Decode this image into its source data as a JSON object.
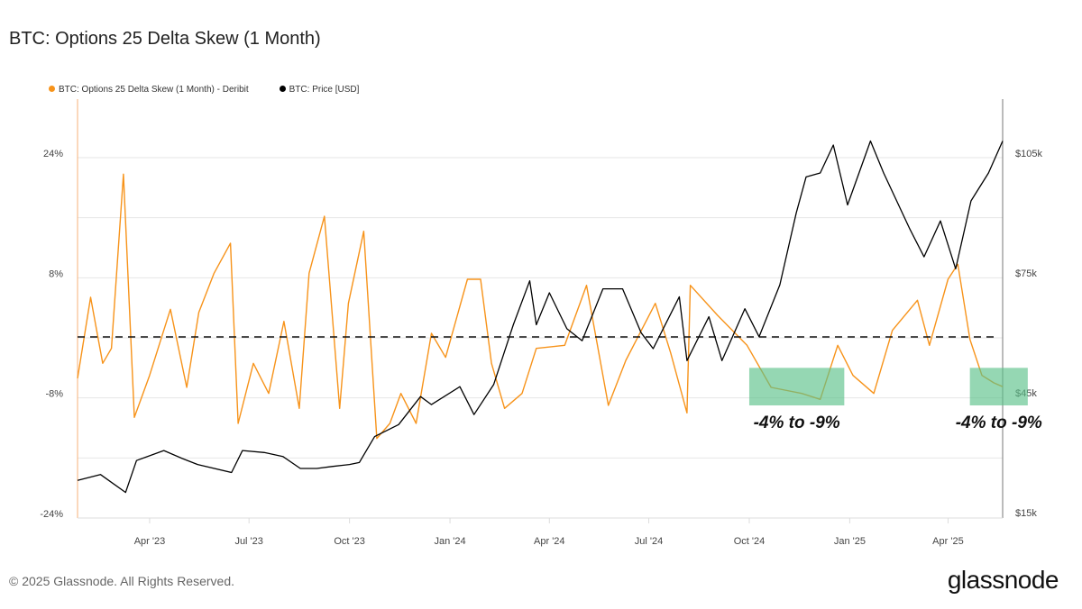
{
  "title": "BTC: Options 25 Delta Skew (1 Month)",
  "footer": "© 2025 Glassnode. All Rights Reserved.",
  "logo": "glassnode",
  "chart_data": {
    "type": "line",
    "title": "BTC: Options 25 Delta Skew (1 Month)",
    "grid": true,
    "legend_placement": "top-left",
    "x_range": [
      "2023-01-25",
      "2025-05-21"
    ],
    "x_ticks": [
      {
        "date": "2023-04-01",
        "label": "Apr '23"
      },
      {
        "date": "2023-07-01",
        "label": "Jul '23"
      },
      {
        "date": "2023-10-01",
        "label": "Oct '23"
      },
      {
        "date": "2024-01-01",
        "label": "Jan '24"
      },
      {
        "date": "2024-04-01",
        "label": "Apr '24"
      },
      {
        "date": "2024-07-01",
        "label": "Jul '24"
      },
      {
        "date": "2024-10-01",
        "label": "Oct '24"
      },
      {
        "date": "2025-01-01",
        "label": "Jan '25"
      },
      {
        "date": "2025-04-01",
        "label": "Apr '25"
      }
    ],
    "left_axis": {
      "ylim": [
        -24,
        31.8
      ],
      "ticks": [
        {
          "v": 24,
          "label": "24%"
        },
        {
          "v": 8,
          "label": "8%"
        },
        {
          "v": -8,
          "label": "-8%"
        },
        {
          "v": -24,
          "label": "-24%"
        }
      ],
      "grid_values": [
        24,
        16,
        8,
        0,
        -8,
        -16,
        -24
      ]
    },
    "right_axis": {
      "ylim": [
        13600,
        118500
      ],
      "ticks": [
        {
          "v": 105000,
          "label": "$105k"
        },
        {
          "v": 75000,
          "label": "$75k"
        },
        {
          "v": 45000,
          "label": "$45k"
        },
        {
          "v": 15000,
          "label": "$15k"
        }
      ]
    },
    "reference_line": {
      "value": 0,
      "axis": "left",
      "style": "dashed",
      "color": "#111111"
    },
    "series": [
      {
        "name": "BTC: Options 25 Delta Skew (1 Month) - Deribit",
        "axis": "left",
        "color": "#f7931a",
        "points": [
          [
            "2023-01-25",
            -5.4
          ],
          [
            "2023-02-06",
            5.4
          ],
          [
            "2023-02-17",
            -3.4
          ],
          [
            "2023-02-25",
            -1.4
          ],
          [
            "2023-03-08",
            21.8
          ],
          [
            "2023-03-18",
            -10.6
          ],
          [
            "2023-04-01",
            -5
          ],
          [
            "2023-04-20",
            3.8
          ],
          [
            "2023-05-05",
            -6.6
          ],
          [
            "2023-05-16",
            3.4
          ],
          [
            "2023-05-30",
            8.6
          ],
          [
            "2023-06-14",
            12.6
          ],
          [
            "2023-06-21",
            -11.4
          ],
          [
            "2023-07-05",
            -3.4
          ],
          [
            "2023-07-19",
            -7.4
          ],
          [
            "2023-08-02",
            2.2
          ],
          [
            "2023-08-16",
            -9.4
          ],
          [
            "2023-08-25",
            8.6
          ],
          [
            "2023-09-08",
            16.2
          ],
          [
            "2023-09-22",
            -9.4
          ],
          [
            "2023-09-30",
            4.6
          ],
          [
            "2023-10-14",
            14.2
          ],
          [
            "2023-10-26",
            -13.4
          ],
          [
            "2023-11-07",
            -11.4
          ],
          [
            "2023-11-17",
            -7.4
          ],
          [
            "2023-12-01",
            -11.4
          ],
          [
            "2023-12-15",
            0.6
          ],
          [
            "2023-12-28",
            -2.6
          ],
          [
            "2024-01-17",
            7.8
          ],
          [
            "2024-01-29",
            7.8
          ],
          [
            "2024-02-08",
            -3.4
          ],
          [
            "2024-02-20",
            -9.4
          ],
          [
            "2024-03-07",
            -7.4
          ],
          [
            "2024-03-20",
            -1.4
          ],
          [
            "2024-04-15",
            -1
          ],
          [
            "2024-05-05",
            7
          ],
          [
            "2024-05-25",
            -9
          ],
          [
            "2024-06-10",
            -3
          ],
          [
            "2024-07-07",
            4.6
          ],
          [
            "2024-07-21",
            -2
          ],
          [
            "2024-08-05",
            -10
          ],
          [
            "2024-08-08",
            7
          ],
          [
            "2024-09-02",
            3
          ],
          [
            "2024-09-29",
            -1
          ],
          [
            "2024-10-21",
            -6.6
          ],
          [
            "2024-11-18",
            -7.4
          ],
          [
            "2024-12-05",
            -8.2
          ],
          [
            "2024-12-21",
            -1
          ],
          [
            "2025-01-04",
            -5
          ],
          [
            "2025-01-23",
            -7.4
          ],
          [
            "2025-02-09",
            1
          ],
          [
            "2025-03-04",
            5
          ],
          [
            "2025-03-15",
            -1
          ],
          [
            "2025-04-01",
            7.8
          ],
          [
            "2025-04-10",
            9.8
          ],
          [
            "2025-04-21",
            -0.2
          ],
          [
            "2025-05-02",
            -5
          ],
          [
            "2025-05-13",
            -6
          ],
          [
            "2025-05-21",
            -6.5
          ]
        ]
      },
      {
        "name": "BTC: Price [USD]",
        "axis": "right",
        "color": "#000000",
        "points": [
          [
            "2023-01-25",
            23000
          ],
          [
            "2023-02-15",
            24500
          ],
          [
            "2023-03-10",
            20000
          ],
          [
            "2023-03-20",
            28000
          ],
          [
            "2023-04-14",
            30500
          ],
          [
            "2023-05-01",
            28500
          ],
          [
            "2023-05-15",
            27000
          ],
          [
            "2023-06-15",
            25000
          ],
          [
            "2023-06-25",
            30500
          ],
          [
            "2023-07-15",
            30000
          ],
          [
            "2023-08-01",
            29000
          ],
          [
            "2023-08-17",
            26000
          ],
          [
            "2023-09-01",
            26000
          ],
          [
            "2023-09-15",
            26500
          ],
          [
            "2023-10-01",
            27000
          ],
          [
            "2023-10-10",
            27500
          ],
          [
            "2023-10-24",
            34000
          ],
          [
            "2023-11-15",
            37000
          ],
          [
            "2023-12-05",
            44000
          ],
          [
            "2023-12-15",
            42000
          ],
          [
            "2024-01-10",
            46500
          ],
          [
            "2024-01-23",
            39500
          ],
          [
            "2024-02-10",
            47000
          ],
          [
            "2024-02-28",
            62000
          ],
          [
            "2024-03-14",
            73000
          ],
          [
            "2024-03-20",
            62000
          ],
          [
            "2024-04-01",
            70000
          ],
          [
            "2024-04-17",
            61000
          ],
          [
            "2024-05-01",
            58000
          ],
          [
            "2024-05-20",
            71000
          ],
          [
            "2024-06-07",
            71000
          ],
          [
            "2024-06-24",
            60000
          ],
          [
            "2024-07-05",
            56000
          ],
          [
            "2024-07-29",
            69000
          ],
          [
            "2024-08-05",
            53000
          ],
          [
            "2024-08-25",
            64000
          ],
          [
            "2024-09-06",
            53000
          ],
          [
            "2024-09-27",
            66000
          ],
          [
            "2024-10-10",
            59000
          ],
          [
            "2024-10-29",
            72000
          ],
          [
            "2024-11-13",
            90000
          ],
          [
            "2024-11-22",
            99000
          ],
          [
            "2024-12-05",
            100000
          ],
          [
            "2024-12-17",
            107000
          ],
          [
            "2024-12-30",
            92000
          ],
          [
            "2025-01-20",
            108000
          ],
          [
            "2025-02-01",
            100000
          ],
          [
            "2025-02-25",
            86000
          ],
          [
            "2025-03-10",
            79000
          ],
          [
            "2025-03-25",
            88000
          ],
          [
            "2025-04-08",
            76000
          ],
          [
            "2025-04-22",
            93000
          ],
          [
            "2025-05-08",
            100000
          ],
          [
            "2025-05-21",
            108000
          ]
        ]
      }
    ],
    "highlights": [
      {
        "start": "2024-10-01",
        "end": "2024-12-27",
        "y_from": -4,
        "y_to": -9,
        "label": "-4% to -9%",
        "color": "#5cc28a"
      },
      {
        "start": "2025-04-21",
        "end": "2025-06-13",
        "y_from": -4,
        "y_to": -9,
        "label": "-4% to -9%",
        "color": "#5cc28a"
      }
    ]
  }
}
